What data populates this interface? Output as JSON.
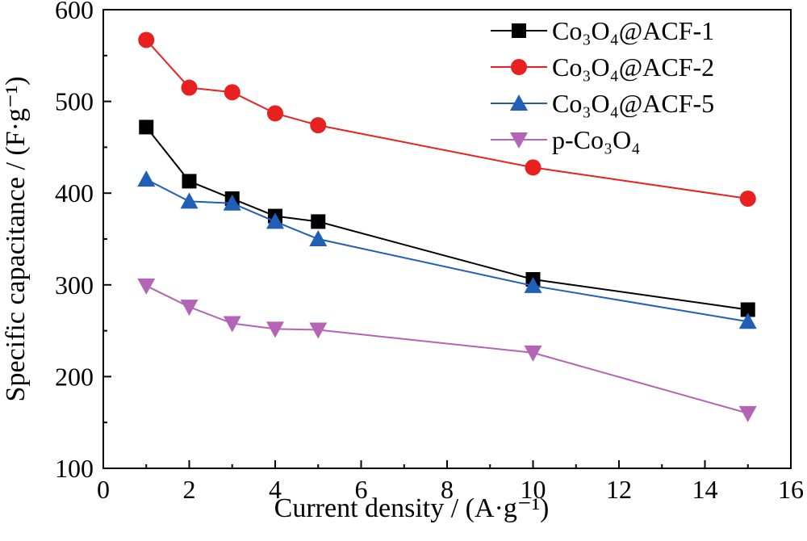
{
  "chart_data": {
    "type": "line",
    "xlabel": "Current density / (A·g⁻¹)",
    "ylabel": "Specific capacitance / (F·g⁻¹)",
    "xlim": [
      0,
      16
    ],
    "ylim": [
      100,
      600
    ],
    "x_ticks": [
      "0",
      "2",
      "4",
      "6",
      "8",
      "10",
      "12",
      "14",
      "16"
    ],
    "y_ticks": [
      "100",
      "200",
      "300",
      "400",
      "500",
      "600"
    ],
    "grid": false,
    "legend_position": "top-right",
    "x": [
      1,
      2,
      3,
      4,
      5,
      10,
      15
    ],
    "series": [
      {
        "name": "Co₃O₄@ACF-1",
        "color": "#000000",
        "marker": "square",
        "values": [
          472,
          413,
          394,
          375,
          369,
          306,
          273
        ]
      },
      {
        "name": "Co₃O₄@ACF-2",
        "color": "#e8201f",
        "marker": "circle",
        "values": [
          567,
          515,
          510,
          487,
          474,
          428,
          394
        ]
      },
      {
        "name": "Co₃O₄@ACF-5",
        "color": "#1f5fb5",
        "marker": "triangle-up",
        "values": [
          415,
          391,
          389,
          369,
          350,
          299,
          260
        ]
      },
      {
        "name": "p-Co₃O₄",
        "color": "#b464b4",
        "marker": "triangle-down",
        "values": [
          299,
          276,
          258,
          252,
          251,
          226,
          160
        ]
      }
    ]
  }
}
